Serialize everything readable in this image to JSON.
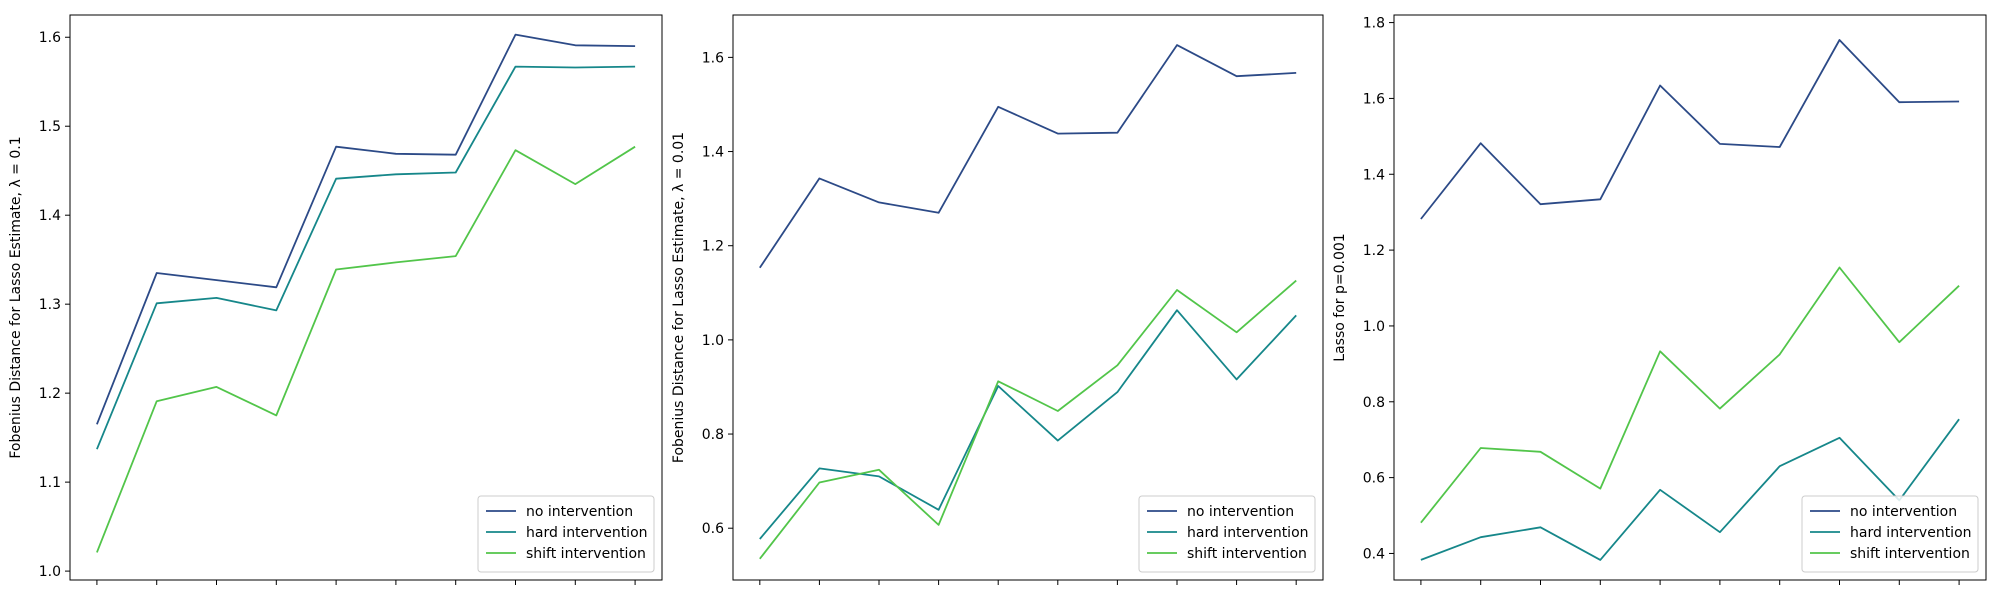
{
  "colors": {
    "no intervention": "#2c4a87",
    "hard intervention": "#16878a",
    "shift intervention": "#52c54a"
  },
  "chart_data": [
    {
      "type": "line",
      "ylabel": "Fobenius Distance for Lasso Estimate, λ = 0.1",
      "xlabel": "",
      "x": [
        1,
        2,
        3,
        4,
        5,
        6,
        7,
        8,
        9,
        10
      ],
      "ylim": [
        0.99,
        1.625
      ],
      "yticks": [
        1.0,
        1.1,
        1.2,
        1.3,
        1.4,
        1.5,
        1.6
      ],
      "ytick_labels": [
        "1.0",
        "1.1",
        "1.2",
        "1.3",
        "1.4",
        "1.5",
        "1.6"
      ],
      "legend_position": "lower-right",
      "series": [
        {
          "name": "no intervention",
          "values": [
            1.165,
            1.335,
            1.327,
            1.319,
            1.477,
            1.469,
            1.468,
            1.603,
            1.591,
            1.59
          ]
        },
        {
          "name": "hard intervention",
          "values": [
            1.137,
            1.301,
            1.307,
            1.293,
            1.441,
            1.446,
            1.448,
            1.567,
            1.566,
            1.567
          ]
        },
        {
          "name": "shift intervention",
          "values": [
            1.021,
            1.191,
            1.207,
            1.175,
            1.339,
            1.347,
            1.354,
            1.473,
            1.435,
            1.477
          ]
        }
      ]
    },
    {
      "type": "line",
      "ylabel": "Fobenius Distance for Lasso Estimate, λ = 0.01",
      "xlabel": "",
      "x": [
        1,
        2,
        3,
        4,
        5,
        6,
        7,
        8,
        9,
        10
      ],
      "ylim": [
        0.49,
        1.69
      ],
      "yticks": [
        0.6,
        0.8,
        1.0,
        1.2,
        1.4,
        1.6
      ],
      "ytick_labels": [
        "0.6",
        "0.8",
        "1.0",
        "1.2",
        "1.4",
        "1.6"
      ],
      "legend_position": "lower-right",
      "series": [
        {
          "name": "no intervention",
          "values": [
            1.153,
            1.343,
            1.292,
            1.27,
            1.495,
            1.438,
            1.44,
            1.626,
            1.56,
            1.567
          ]
        },
        {
          "name": "hard intervention",
          "values": [
            0.577,
            0.727,
            0.71,
            0.639,
            0.902,
            0.786,
            0.889,
            1.063,
            0.916,
            1.052
          ]
        },
        {
          "name": "shift intervention",
          "values": [
            0.535,
            0.697,
            0.724,
            0.607,
            0.912,
            0.849,
            0.946,
            1.106,
            1.016,
            1.126
          ]
        }
      ]
    },
    {
      "type": "line",
      "ylabel": "Lasso for p=0.001",
      "xlabel": "",
      "x": [
        1,
        2,
        3,
        4,
        5,
        6,
        7,
        8,
        9,
        10
      ],
      "ylim": [
        0.33,
        1.82
      ],
      "yticks": [
        0.4,
        0.6,
        0.8,
        1.0,
        1.2,
        1.4,
        1.6,
        1.8
      ],
      "ytick_labels": [
        "0.4",
        "0.6",
        "0.8",
        "1.0",
        "1.2",
        "1.4",
        "1.6",
        "1.8"
      ],
      "legend_position": "lower-right",
      "series": [
        {
          "name": "no intervention",
          "values": [
            1.282,
            1.482,
            1.321,
            1.334,
            1.634,
            1.48,
            1.472,
            1.754,
            1.59,
            1.592
          ]
        },
        {
          "name": "hard intervention",
          "values": [
            0.383,
            0.443,
            0.469,
            0.383,
            0.568,
            0.456,
            0.63,
            0.705,
            0.54,
            0.754
          ]
        },
        {
          "name": "shift intervention",
          "values": [
            0.481,
            0.678,
            0.668,
            0.571,
            0.933,
            0.782,
            0.925,
            1.154,
            0.957,
            1.106
          ]
        }
      ]
    }
  ]
}
